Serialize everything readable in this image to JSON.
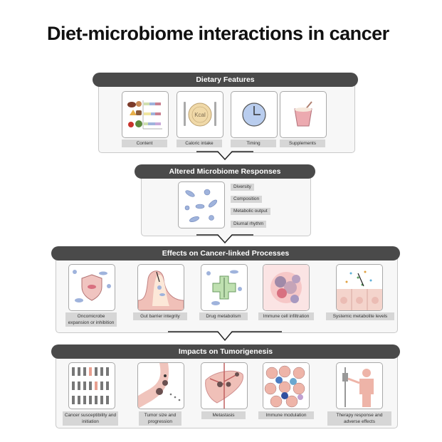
{
  "title": "Diet-microbiome interactions in cancer",
  "sections": {
    "dietary": {
      "header": "Dietary Features",
      "items": [
        "Content",
        "Caloric intake",
        "Timing",
        "Supplements"
      ],
      "kcal": "Kcal"
    },
    "microbiome": {
      "header": "Altered Microbiome Responses",
      "tags": [
        "Diversity",
        "Composition",
        "Metabolic output",
        "Diurnal rhythm"
      ]
    },
    "processes": {
      "header": "Effects on Cancer-linked Processes",
      "items": [
        "Oncomicrobe expansion or inhibition",
        "Gut barrier integrity",
        "Drug metabolism",
        "Immune cell infiltration",
        "Systemic metabolite levels"
      ]
    },
    "impacts": {
      "header": "Impacts on Tumorigenesis",
      "items": [
        "Cancer susceptibility and initiation",
        "Tumor size and progression",
        "Metastasis",
        "Immune modulation",
        "Therapy response and adverse effects"
      ]
    }
  },
  "colors": {
    "header": "#4a4a4a",
    "label": "#d6d6d6",
    "bacteria": "#9fb3dc",
    "tissue": "#e9b8b0"
  }
}
